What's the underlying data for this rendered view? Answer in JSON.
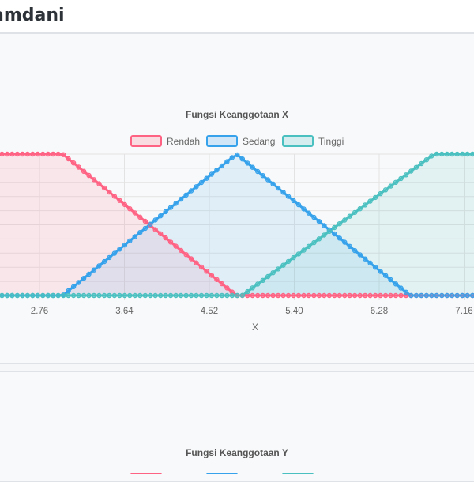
{
  "page": {
    "title": "amdani"
  },
  "chart_data": [
    {
      "type": "area",
      "title": "Fungsi Keanggotaan X",
      "xlabel": "X",
      "ylabel": "",
      "xlim": [
        2.0,
        7.3
      ],
      "ylim": [
        0,
        1
      ],
      "x_ticks": [
        "2.76",
        "3.64",
        "4.52",
        "5.40",
        "6.28",
        "7.16"
      ],
      "grid": true,
      "legend_position": "top",
      "series": [
        {
          "name": "Rendah",
          "color": "#ff6384",
          "points": [
            [
              2.0,
              1
            ],
            [
              3.0,
              1
            ],
            [
              4.8,
              0
            ],
            [
              7.3,
              0
            ]
          ]
        },
        {
          "name": "Sedang",
          "color": "#36a2eb",
          "points": [
            [
              2.0,
              0
            ],
            [
              3.0,
              0
            ],
            [
              4.8,
              1
            ],
            [
              6.6,
              0
            ],
            [
              7.3,
              0
            ]
          ]
        },
        {
          "name": "Tinggi",
          "color": "#4bc0c0",
          "points": [
            [
              2.0,
              0
            ],
            [
              4.86,
              0
            ],
            [
              6.85,
              1
            ],
            [
              7.3,
              1
            ]
          ]
        }
      ]
    },
    {
      "type": "area",
      "title": "Fungsi Keanggotaan Y",
      "legend_position": "top",
      "series": [
        {
          "color": "#ff6384"
        },
        {
          "color": "#36a2eb"
        },
        {
          "color": "#4bc0c0"
        }
      ]
    }
  ]
}
